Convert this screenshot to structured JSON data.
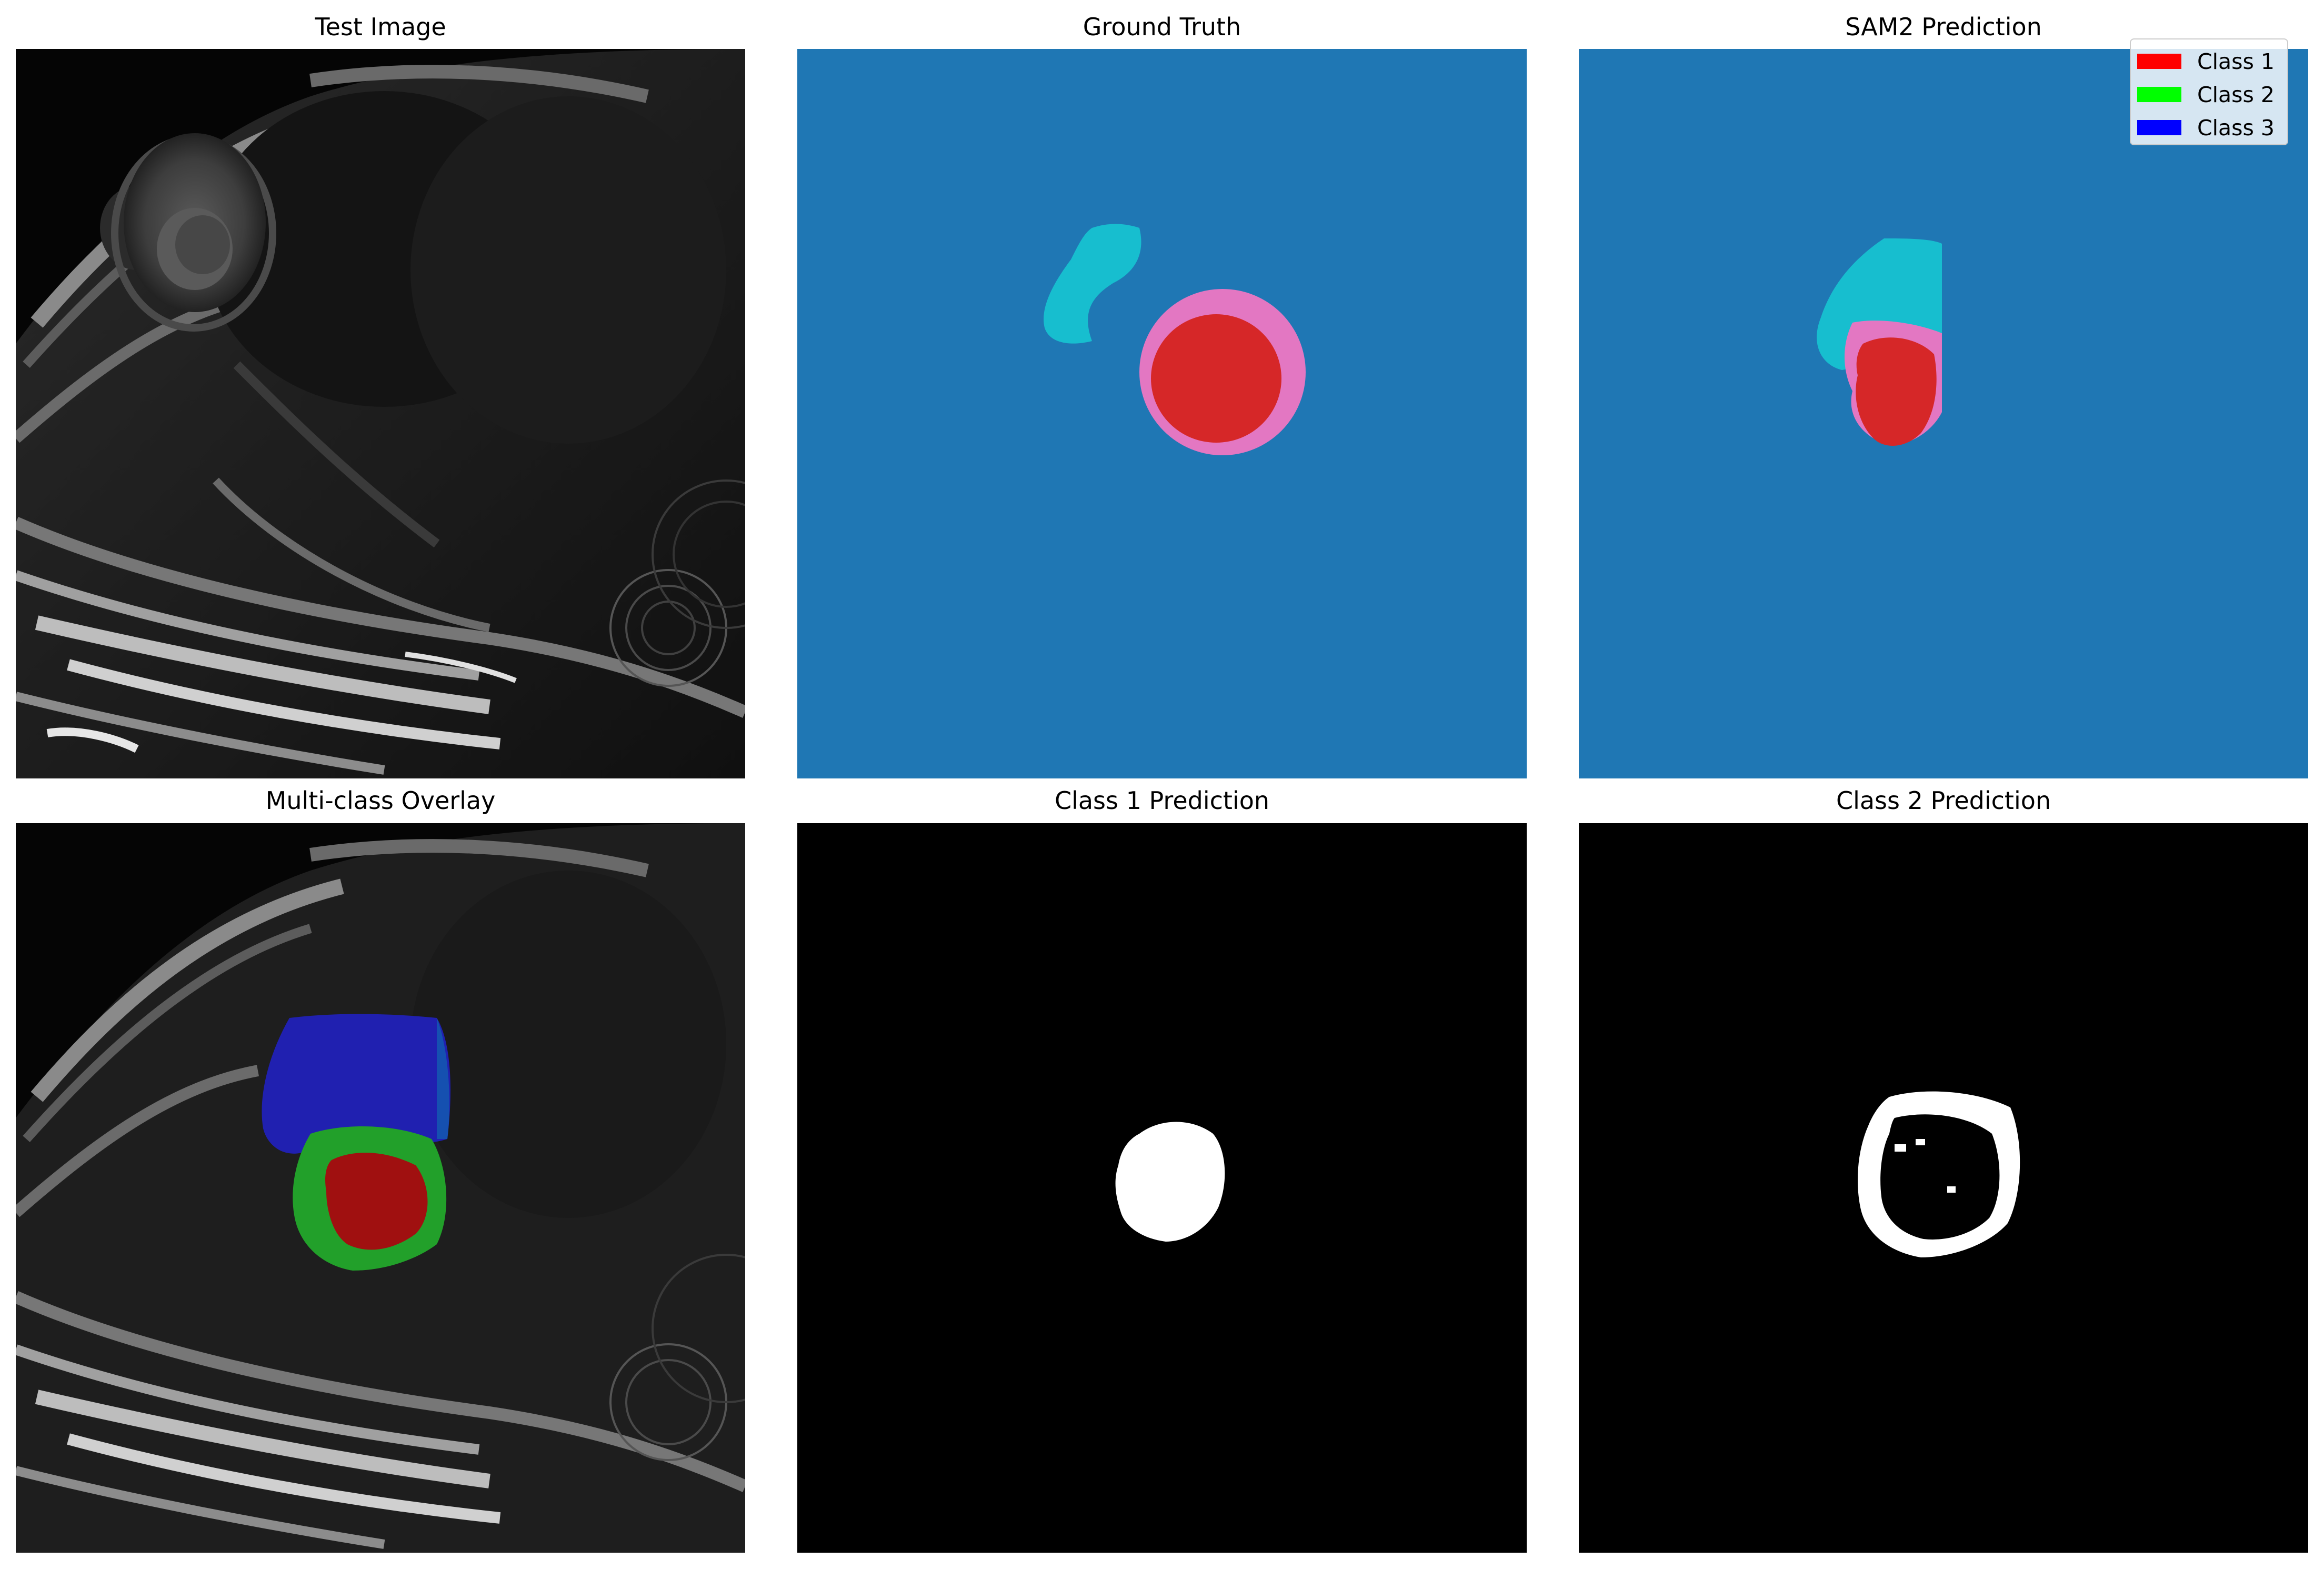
{
  "panels": [
    {
      "title": "Test Image"
    },
    {
      "title": "Ground Truth"
    },
    {
      "title": "SAM2 Prediction"
    },
    {
      "title": "Multi-class Overlay"
    },
    {
      "title": "Class 1 Prediction"
    },
    {
      "title": "Class 2 Prediction"
    }
  ],
  "legend": {
    "items": [
      {
        "label": "Class 1",
        "color": "#ff0000"
      },
      {
        "label": "Class 2",
        "color": "#00ff00"
      },
      {
        "label": "Class 3",
        "color": "#0000ff"
      }
    ]
  },
  "colors": {
    "background_class": "#1f77b4",
    "cyan_class": "#17becf",
    "pink_class": "#e377c2",
    "red_class": "#d62728"
  }
}
